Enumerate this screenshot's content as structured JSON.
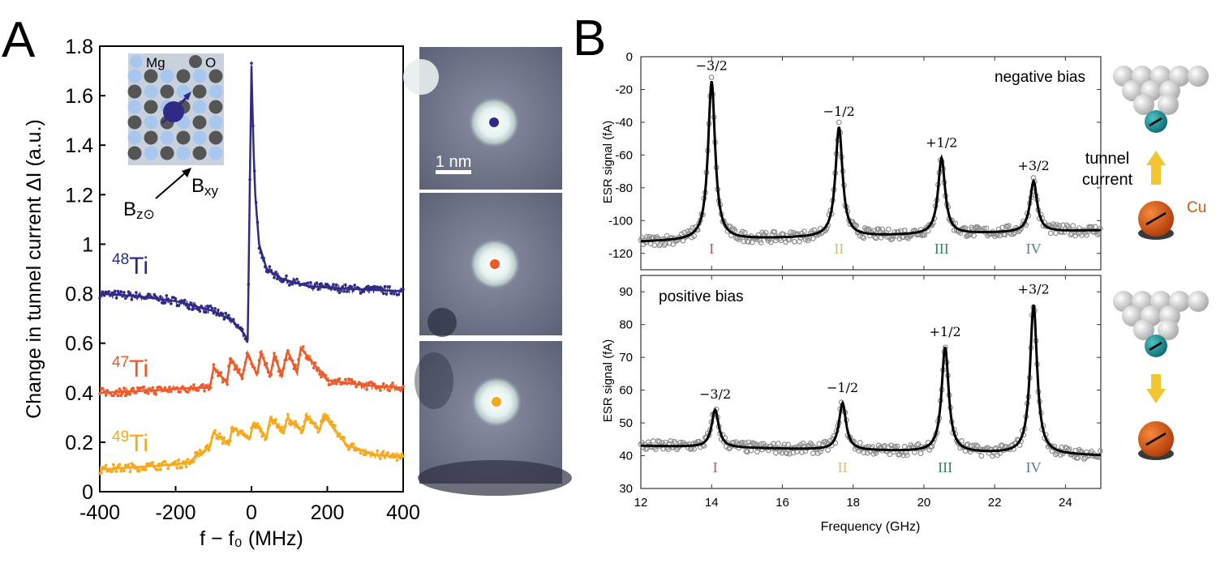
{
  "panel_a": {
    "letter": "A",
    "ylabel": "Change in tunnel current ΔI (a.u.)",
    "xlabel": "f − f₀ (MHz)",
    "inset": {
      "legend_mg": "Mg",
      "legend_o": "O",
      "bz": "B",
      "bz_sub": "z⊙",
      "bxy": "B",
      "bxy_sub": "xy"
    },
    "series_labels": [
      {
        "mass": "48",
        "element": "Ti",
        "color": "#2e2a86"
      },
      {
        "mass": "47",
        "element": "Ti",
        "color": "#ef5a28"
      },
      {
        "mass": "49",
        "element": "Ti",
        "color": "#f7a81b"
      }
    ],
    "scale_bar": "1 nm"
  },
  "panel_b": {
    "letter": "B",
    "top": {
      "annotation": "negative bias",
      "ylabel": "ESR signal (fA)"
    },
    "bottom": {
      "annotation": "positive bias",
      "ylabel": "ESR signal (fA)"
    },
    "xlabel": "Frequency (GHz)",
    "roman": [
      "I",
      "II",
      "III",
      "IV"
    ],
    "roman_colors": [
      "#c0506b",
      "#d6c070",
      "#2e8b57",
      "#4b7db0"
    ],
    "tip_labels": {
      "tunnel": "tunnel",
      "current": "current",
      "cu": "Cu"
    }
  },
  "chart_data": [
    {
      "type": "line",
      "panel": "A",
      "xlabel": "f − f₀ (MHz)",
      "ylabel": "Change in tunnel current ΔI (a.u.)",
      "xlim": [
        -400,
        400
      ],
      "ylim": [
        0,
        1.8
      ],
      "xticks": [
        -400,
        -200,
        0,
        200,
        400
      ],
      "yticks": [
        0,
        0.2,
        0.4,
        0.6,
        0.8,
        1,
        1.2,
        1.4,
        1.6,
        1.8
      ],
      "ytick_labels": [
        "0",
        "0.2",
        "0.4",
        "0.6",
        "0.8",
        "1",
        "1.2",
        "1.4",
        "1.6",
        "1.8"
      ],
      "series": [
        {
          "name": "48Ti",
          "color": "#2e2a86",
          "x": [
            -400,
            -300,
            -200,
            -100,
            -50,
            -20,
            -10,
            0,
            5,
            10,
            20,
            40,
            80,
            150,
            250,
            400
          ],
          "y": [
            0.8,
            0.79,
            0.77,
            0.73,
            0.69,
            0.64,
            0.61,
            1.72,
            1.4,
            1.2,
            1.0,
            0.9,
            0.86,
            0.83,
            0.82,
            0.81
          ]
        },
        {
          "name": "47Ti",
          "color": "#ef5a28",
          "x": [
            -400,
            -250,
            -150,
            -110,
            -100,
            -65,
            -55,
            -25,
            -10,
            15,
            25,
            50,
            60,
            80,
            95,
            120,
            130,
            200,
            300,
            400
          ],
          "y": [
            0.4,
            0.41,
            0.42,
            0.42,
            0.5,
            0.44,
            0.54,
            0.46,
            0.56,
            0.47,
            0.56,
            0.47,
            0.55,
            0.47,
            0.57,
            0.48,
            0.58,
            0.45,
            0.43,
            0.42
          ]
        },
        {
          "name": "49Ti",
          "color": "#f7a81b",
          "x": [
            -400,
            -300,
            -200,
            -160,
            -150,
            -110,
            -100,
            -60,
            -50,
            -5,
            5,
            40,
            50,
            85,
            95,
            135,
            145,
            180,
            190,
            250,
            320,
            400
          ],
          "y": [
            0.09,
            0.1,
            0.11,
            0.12,
            0.14,
            0.18,
            0.24,
            0.19,
            0.26,
            0.21,
            0.28,
            0.22,
            0.3,
            0.24,
            0.3,
            0.24,
            0.31,
            0.25,
            0.31,
            0.19,
            0.15,
            0.14
          ]
        }
      ]
    },
    {
      "type": "scatter",
      "panel": "B",
      "title": "negative bias",
      "xlabel": "Frequency (GHz)",
      "ylabel": "ESR signal (fA)",
      "xlim": [
        12,
        25
      ],
      "ylim": [
        -130,
        0
      ],
      "xticks": [
        12,
        14,
        16,
        18,
        20,
        22,
        24
      ],
      "yticks": [
        0,
        -20,
        -40,
        -60,
        -80,
        -100,
        -120
      ],
      "peaks": [
        {
          "label": "−3/2",
          "x": 14.0,
          "y": -15
        },
        {
          "label": "−1/2",
          "x": 17.6,
          "y": -43
        },
        {
          "label": "+1/2",
          "x": 20.5,
          "y": -62
        },
        {
          "label": "+3/2",
          "x": 23.1,
          "y": -76
        }
      ],
      "background": {
        "x": [
          12,
          25
        ],
        "y": [
          -113,
          -106
        ]
      }
    },
    {
      "type": "scatter",
      "panel": "B",
      "title": "positive bias",
      "xlabel": "Frequency (GHz)",
      "ylabel": "ESR signal (fA)",
      "xlim": [
        12,
        25
      ],
      "ylim": [
        30,
        95
      ],
      "xticks": [
        12,
        14,
        16,
        18,
        20,
        22,
        24
      ],
      "yticks": [
        30,
        40,
        50,
        60,
        70,
        80,
        90
      ],
      "peaks": [
        {
          "label": "−3/2",
          "x": 14.1,
          "y": 54
        },
        {
          "label": "−1/2",
          "x": 17.7,
          "y": 56
        },
        {
          "label": "+1/2",
          "x": 20.6,
          "y": 73
        },
        {
          "label": "+3/2",
          "x": 23.1,
          "y": 86
        }
      ],
      "background": {
        "x": [
          12,
          25
        ],
        "y": [
          43,
          40
        ]
      }
    }
  ]
}
